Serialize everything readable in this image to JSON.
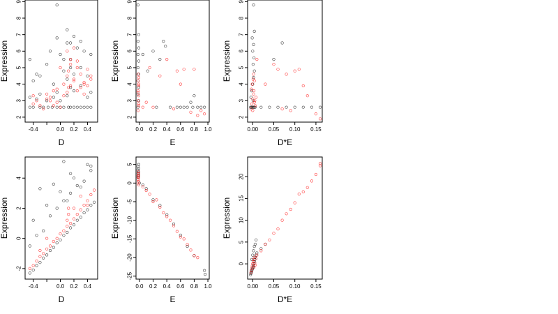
{
  "figure": {
    "background": "#ffffff",
    "colors": {
      "black_points": "#000000",
      "red_points": "#ff0000",
      "axes": "#000000"
    }
  },
  "chart_data": [
    {
      "type": "scatter",
      "xlabel": "D",
      "ylabel": "Expression",
      "xlim": [
        -0.52,
        0.55
      ],
      "ylim": [
        1.7,
        9.1
      ],
      "xticks": [
        -0.4,
        -0.2,
        0.0,
        0.2,
        0.4
      ],
      "xtick_labels": [
        "-0.4",
        "",
        "0.0",
        "0.2",
        "0.4"
      ],
      "yticks": [
        2,
        3,
        4,
        5,
        6,
        7,
        8,
        9
      ],
      "ytick_labels": [
        "2",
        "3",
        "4",
        "5",
        "6",
        "7",
        "8",
        "9"
      ],
      "series": [
        {
          "color": "black",
          "x": [
            -0.45,
            -0.4,
            -0.3,
            -0.25,
            -0.18,
            -0.12,
            -0.05,
            0.0,
            0.05,
            0.12,
            0.15,
            0.2,
            0.25,
            0.3,
            0.35,
            0.4,
            0.45,
            -0.45,
            -0.35,
            -0.3,
            -0.2,
            -0.1,
            -0.05,
            0.0,
            0.1,
            0.15,
            0.2,
            0.3,
            0.4,
            0.45,
            -0.4,
            -0.3,
            -0.1,
            0.05,
            0.1,
            0.2,
            0.3,
            0.4,
            -0.45,
            -0.2,
            -0.15,
            0.0,
            0.1,
            0.15,
            0.25,
            0.45,
            -0.05,
            0.1,
            0.2,
            0.3,
            -0.35,
            0.05,
            0.15,
            0.35,
            -0.05,
            0.15
          ],
          "y": [
            2.6,
            2.6,
            2.6,
            2.6,
            2.6,
            2.6,
            2.6,
            2.6,
            2.6,
            2.6,
            2.6,
            2.6,
            2.6,
            2.6,
            2.6,
            2.6,
            2.6,
            3.2,
            3.1,
            3.4,
            3.0,
            3.2,
            3.5,
            3.0,
            3.3,
            3.8,
            3.6,
            3.9,
            3.2,
            3.5,
            4.2,
            4.5,
            4.0,
            4.8,
            4.3,
            4.6,
            5.0,
            4.5,
            5.5,
            5.2,
            6.0,
            5.8,
            6.5,
            5.5,
            6.2,
            5.8,
            6.8,
            7.3,
            6.9,
            6.6,
            4.6,
            5.5,
            5.0,
            6.0,
            8.8,
            6.5
          ]
        },
        {
          "color": "red",
          "x": [
            -0.4,
            -0.35,
            -0.3,
            -0.25,
            -0.2,
            -0.15,
            -0.1,
            -0.05,
            0.0,
            0.05,
            0.1,
            0.12,
            0.15,
            0.2,
            0.25,
            0.3,
            0.35,
            0.4,
            0.45,
            -0.15,
            -0.1,
            0.1,
            0.12,
            0.15,
            0.2,
            0.3,
            0.35,
            -0.2,
            0.05,
            0.25,
            0.4,
            0.45,
            -0.05,
            0.15,
            0.2,
            0.35,
            -0.4,
            0.0,
            0.1,
            0.25
          ],
          "y": [
            2.8,
            3.0,
            2.7,
            2.5,
            3.1,
            3.2,
            2.7,
            2.9,
            2.6,
            3.3,
            3.5,
            3.8,
            3.9,
            4.2,
            3.6,
            3.8,
            3.4,
            3.9,
            4.5,
            3.0,
            3.6,
            4.5,
            4.8,
            5.2,
            4.3,
            4.6,
            4.1,
            3.4,
            4.0,
            5.4,
            4.9,
            4.3,
            3.7,
            5.5,
            6.2,
            4.0,
            3.3,
            5.0,
            6.0,
            5.0
          ]
        }
      ]
    },
    {
      "type": "scatter",
      "xlabel": "E",
      "ylabel": "Expression",
      "xlim": [
        -0.05,
        1.02
      ],
      "ylim": [
        1.7,
        9.1
      ],
      "xticks": [
        0.0,
        0.2,
        0.4,
        0.6,
        0.8,
        1.0
      ],
      "xtick_labels": [
        "0.0",
        "0.2",
        "0.4",
        "0.6",
        "0.8",
        "1.0"
      ],
      "yticks": [
        2,
        3,
        4,
        5,
        6,
        7,
        8,
        9
      ],
      "ytick_labels": [
        "2",
        "3",
        "4",
        "5",
        "6",
        "7",
        "8",
        "9"
      ],
      "series": [
        {
          "color": "black",
          "x": [
            -0.02,
            -0.01,
            -0.02,
            -0.01,
            -0.02,
            -0.01,
            -0.02,
            -0.01,
            -0.02,
            -0.01,
            -0.02,
            -0.01,
            -0.02,
            0.05,
            0.12,
            0.2,
            0.25,
            0.3,
            0.35,
            0.38,
            0.45,
            0.55,
            0.6,
            0.65,
            0.7,
            0.78,
            0.8,
            0.85,
            0.9,
            0.95,
            0.75
          ],
          "y": [
            2.6,
            3.0,
            3.4,
            3.8,
            4.2,
            4.6,
            5.0,
            5.4,
            5.8,
            6.2,
            6.6,
            7.0,
            8.8,
            5.8,
            4.8,
            6.0,
            2.6,
            5.5,
            6.6,
            6.3,
            2.6,
            2.6,
            2.6,
            2.6,
            2.6,
            2.6,
            3.3,
            2.6,
            2.6,
            2.6,
            2.9
          ]
        },
        {
          "color": "red",
          "x": [
            -0.02,
            -0.01,
            -0.02,
            -0.01,
            -0.02,
            -0.01,
            -0.02,
            -0.01,
            -0.02,
            -0.01,
            -0.02,
            -0.01,
            0.05,
            0.1,
            0.15,
            0.2,
            0.3,
            0.4,
            0.5,
            0.55,
            0.6,
            0.65,
            0.75,
            0.8,
            0.85,
            0.9,
            0.95
          ],
          "y": [
            2.4,
            2.7,
            3.0,
            3.3,
            3.6,
            3.9,
            4.2,
            4.4,
            4.6,
            4.0,
            3.5,
            2.8,
            2.6,
            2.9,
            5.0,
            2.6,
            4.5,
            5.5,
            2.5,
            4.8,
            4.0,
            4.9,
            2.3,
            4.9,
            2.1,
            2.4,
            2.2
          ]
        }
      ]
    },
    {
      "type": "scatter",
      "xlabel": "D*E",
      "ylabel": "Expression",
      "xlim": [
        -0.012,
        0.165
      ],
      "ylim": [
        1.7,
        9.1
      ],
      "xticks": [
        0.0,
        0.05,
        0.1,
        0.15
      ],
      "xtick_labels": [
        "0.00",
        "0.05",
        "0.10",
        "0.15"
      ],
      "yticks": [
        2,
        3,
        4,
        5,
        6,
        7,
        8,
        9
      ],
      "ytick_labels": [
        "2",
        "3",
        "4",
        "5",
        "6",
        "7",
        "8",
        "9"
      ],
      "series": [
        {
          "color": "black",
          "x": [
            -0.005,
            -0.003,
            -0.002,
            0.0,
            0.002,
            0.004,
            0.006,
            -0.004,
            -0.002,
            0.0,
            0.002,
            0.004,
            0.001,
            0.003,
            0.0,
            0.002,
            -0.001,
            0.004,
            0.002,
            0.001,
            0.02,
            0.04,
            0.06,
            0.08,
            0.1,
            0.12,
            0.14,
            0.16,
            0.05,
            0.07
          ],
          "y": [
            2.6,
            2.6,
            2.6,
            2.6,
            2.6,
            2.6,
            2.6,
            3.2,
            3.6,
            4.0,
            4.4,
            4.8,
            5.2,
            5.6,
            6.0,
            6.4,
            6.8,
            7.2,
            8.8,
            3.0,
            2.6,
            2.6,
            2.6,
            2.6,
            2.6,
            2.6,
            2.6,
            2.6,
            5.5,
            6.5
          ]
        },
        {
          "color": "red",
          "x": [
            -0.004,
            -0.002,
            0.0,
            0.002,
            0.004,
            0.006,
            0.008,
            -0.003,
            -0.001,
            0.001,
            0.003,
            0.005,
            0.0,
            0.002,
            0.004,
            0.01,
            0.03,
            0.05,
            0.07,
            0.08,
            0.1,
            0.11,
            0.12,
            0.13,
            0.15,
            0.16,
            0.09,
            0.06
          ],
          "y": [
            2.5,
            2.8,
            3.1,
            3.4,
            2.9,
            2.7,
            3.2,
            3.7,
            4.0,
            4.3,
            3.6,
            3.0,
            2.4,
            4.6,
            4.2,
            5.5,
            4.0,
            5.2,
            2.5,
            4.6,
            4.8,
            4.9,
            3.9,
            3.3,
            2.2,
            1.9,
            2.4,
            4.9
          ]
        }
      ]
    },
    {
      "type": "scatter",
      "xlabel": "D",
      "ylabel": "Expression",
      "xlim": [
        -0.52,
        0.55
      ],
      "ylim": [
        -2.7,
        5.4
      ],
      "xticks": [
        -0.4,
        -0.2,
        0.0,
        0.2,
        0.4
      ],
      "xtick_labels": [
        "-0.4",
        "",
        "0.0",
        "0.2",
        "0.4"
      ],
      "yticks": [
        -2,
        0,
        2,
        4
      ],
      "ytick_labels": [
        "-2",
        "0",
        "2",
        "4"
      ],
      "series": [
        {
          "color": "black",
          "x": [
            -0.45,
            -0.4,
            -0.35,
            -0.3,
            -0.25,
            -0.2,
            -0.15,
            -0.1,
            -0.05,
            0.0,
            0.05,
            0.1,
            0.15,
            0.2,
            0.25,
            0.3,
            0.35,
            0.4,
            0.45,
            0.5,
            -0.45,
            -0.35,
            -0.25,
            -0.15,
            -0.05,
            0.05,
            0.15,
            0.25,
            0.35,
            0.45,
            -0.4,
            -0.2,
            0.0,
            0.1,
            0.2,
            0.3,
            0.4,
            -0.3,
            0.05,
            0.45,
            -0.1,
            0.15
          ],
          "y": [
            -2.3,
            -2.1,
            -1.8,
            -1.6,
            -1.3,
            -1.1,
            -0.8,
            -0.6,
            -0.3,
            -0.1,
            0.2,
            0.4,
            0.7,
            0.9,
            1.2,
            1.4,
            1.7,
            1.9,
            2.2,
            2.4,
            -0.5,
            0.2,
            0.5,
            1.5,
            2.0,
            2.5,
            3.0,
            3.5,
            3.8,
            4.8,
            1.2,
            2.2,
            3.1,
            2.5,
            4.0,
            3.4,
            4.9,
            3.3,
            5.1,
            4.5,
            3.6,
            4.3
          ]
        },
        {
          "color": "red",
          "x": [
            -0.45,
            -0.4,
            -0.35,
            -0.3,
            -0.25,
            -0.2,
            -0.15,
            -0.1,
            -0.05,
            0.0,
            0.05,
            0.1,
            0.12,
            0.15,
            0.2,
            0.25,
            0.3,
            0.35,
            0.4,
            0.45,
            0.5,
            0.1,
            0.12,
            0.2,
            0.3,
            0.4,
            -0.3,
            -0.2
          ],
          "y": [
            -2.0,
            -1.8,
            -1.5,
            -1.2,
            -1.0,
            -0.7,
            -0.5,
            -0.2,
            0.0,
            0.3,
            0.5,
            0.8,
            1.6,
            1.0,
            1.3,
            1.6,
            1.9,
            2.2,
            2.5,
            2.9,
            3.2,
            1.2,
            2.0,
            2.0,
            2.8,
            2.2,
            -0.8,
            0.0
          ]
        }
      ]
    },
    {
      "type": "scatter",
      "xlabel": "E",
      "ylabel": "Expression",
      "xlim": [
        -0.05,
        1.02
      ],
      "ylim": [
        -25.8,
        7.0
      ],
      "xticks": [
        0.0,
        0.2,
        0.4,
        0.6,
        0.8,
        1.0
      ],
      "xtick_labels": [
        "0.0",
        "0.2",
        "0.4",
        "0.6",
        "0.8",
        "1.0"
      ],
      "yticks": [
        -25,
        -20,
        -15,
        -10,
        -5,
        0,
        5
      ],
      "ytick_labels": [
        "-25",
        "-20",
        "-15",
        "-10",
        "-5",
        "0",
        "5"
      ],
      "series": [
        {
          "color": "black",
          "x": [
            -0.02,
            -0.01,
            -0.02,
            -0.01,
            -0.02,
            -0.01,
            -0.02,
            -0.01,
            0.0,
            0.05,
            0.1,
            0.2,
            0.3,
            0.4,
            0.5,
            0.6,
            0.7,
            0.8,
            0.95,
            0.96
          ],
          "y": [
            1.5,
            2.0,
            2.5,
            3.0,
            3.5,
            4.0,
            4.5,
            5.0,
            0.0,
            -0.5,
            -1.5,
            -4.5,
            -6.0,
            -8.5,
            -11.0,
            -14.0,
            -17.0,
            -19.5,
            -23.5,
            -24.5
          ]
        },
        {
          "color": "red",
          "x": [
            -0.02,
            -0.01,
            -0.02,
            -0.01,
            -0.02,
            -0.01,
            -0.02,
            -0.01,
            -0.02,
            0.05,
            0.1,
            0.15,
            0.2,
            0.25,
            0.3,
            0.35,
            0.4,
            0.45,
            0.5,
            0.55,
            0.6,
            0.65,
            0.7,
            0.75,
            0.8,
            0.85
          ],
          "y": [
            0.0,
            0.5,
            1.0,
            1.5,
            2.0,
            2.5,
            3.0,
            -0.5,
            1.8,
            -1.0,
            -2.0,
            -3.0,
            -5.0,
            -4.5,
            -6.5,
            -8.0,
            -9.0,
            -10.0,
            -11.5,
            -13.0,
            -14.5,
            -15.0,
            -16.5,
            -18.0,
            -19.5,
            -20.0
          ]
        }
      ]
    },
    {
      "type": "scatter",
      "xlabel": "D*E",
      "ylabel": "Expression",
      "xlim": [
        -0.012,
        0.165
      ],
      "ylim": [
        -3.5,
        24.5
      ],
      "xticks": [
        0.0,
        0.05,
        0.1,
        0.15
      ],
      "xtick_labels": [
        "0.00",
        "0.05",
        "0.10",
        "0.15"
      ],
      "yticks": [
        0,
        5,
        10,
        15,
        20
      ],
      "ytick_labels": [
        "0",
        "5",
        "10",
        "15",
        "20"
      ],
      "series": [
        {
          "color": "black",
          "x": [
            -0.005,
            -0.004,
            -0.003,
            -0.002,
            -0.001,
            0.0,
            0.001,
            0.002,
            0.003,
            0.004,
            0.005,
            0.006,
            0.008,
            0.01,
            -0.002,
            0.0,
            0.002,
            0.004,
            0.006,
            0.008,
            0.02,
            0.03
          ],
          "y": [
            -2.5,
            -2.2,
            -1.9,
            -1.6,
            -1.3,
            -1.0,
            -0.7,
            -0.4,
            0.0,
            0.5,
            1.0,
            1.5,
            2.0,
            2.5,
            1.0,
            2.0,
            3.0,
            4.0,
            4.5,
            5.5,
            3.5,
            4.5
          ]
        },
        {
          "color": "red",
          "x": [
            -0.004,
            -0.003,
            -0.002,
            -0.001,
            0.0,
            0.001,
            0.002,
            0.003,
            0.004,
            0.005,
            0.006,
            0.008,
            0.01,
            0.02,
            0.03,
            0.04,
            0.05,
            0.06,
            0.07,
            0.08,
            0.09,
            0.1,
            0.11,
            0.12,
            0.13,
            0.14,
            0.15,
            0.16,
            0.16
          ],
          "y": [
            -2.0,
            -1.5,
            -1.0,
            -0.5,
            0.0,
            0.5,
            1.0,
            -0.8,
            1.5,
            0.2,
            -0.3,
            1.2,
            2.0,
            3.0,
            4.5,
            5.5,
            7.0,
            8.0,
            10.0,
            11.5,
            12.5,
            14.0,
            16.0,
            16.5,
            17.5,
            19.0,
            20.5,
            22.5,
            23.0
          ]
        }
      ]
    }
  ]
}
